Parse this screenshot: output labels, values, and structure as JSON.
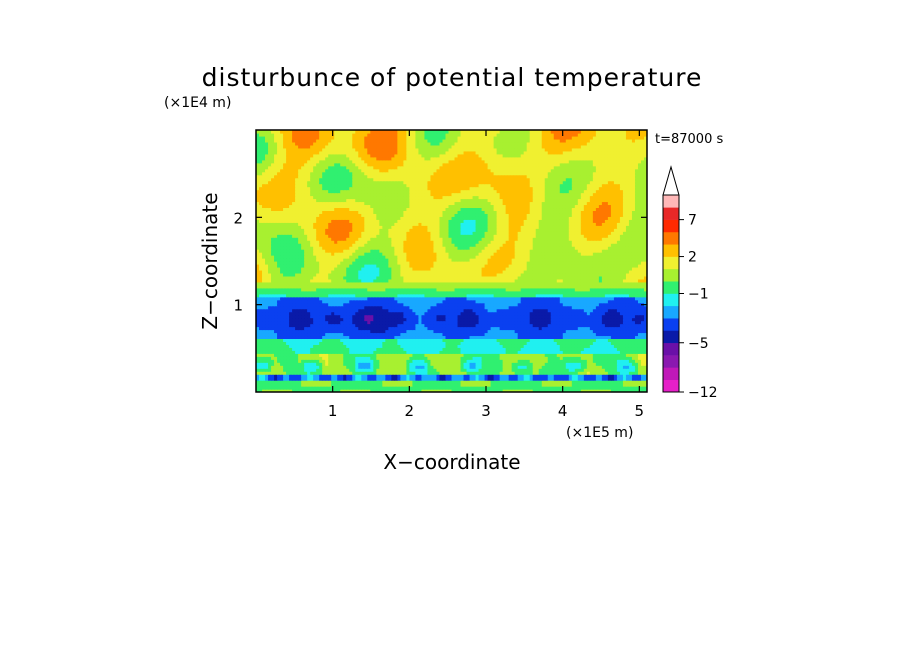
{
  "chart_data": {
    "type": "heatmap",
    "title": "disturbunce of potential temperature",
    "xlabel": "X−coordinate",
    "ylabel": "Z−coordinate",
    "x_unit": "(×1E5 m)",
    "y_unit": "(×1E4 m)",
    "time_label": "t=87000 s",
    "xlim": [
      0,
      5.1
    ],
    "ylim": [
      0,
      3.0
    ],
    "x_ticks": [
      1,
      2,
      3,
      4,
      5
    ],
    "y_ticks": [
      1,
      2
    ],
    "colorbar": {
      "levels": [
        -12,
        -10,
        -8,
        -6,
        -5,
        -4,
        -3,
        -2,
        -1,
        0,
        1,
        2,
        3,
        5,
        7,
        9,
        11
      ],
      "colors": [
        "#e620c8",
        "#c018b8",
        "#8a18b0",
        "#6a10a8",
        "#0a1aa8",
        "#0a40f0",
        "#18a8ff",
        "#20f0f0",
        "#30f070",
        "#a8f030",
        "#f0f030",
        "#ffc000",
        "#ff7800",
        "#ff2a00",
        "#e82828",
        "#ffb8b8"
      ],
      "extend": "max",
      "labels": [
        {
          "text": "7",
          "value": 7
        },
        {
          "text": "2",
          "value": 2
        },
        {
          "text": "−1",
          "value": -1
        },
        {
          "text": "−5",
          "value": -5
        },
        {
          "text": "−12",
          "value": -12
        }
      ]
    }
  }
}
